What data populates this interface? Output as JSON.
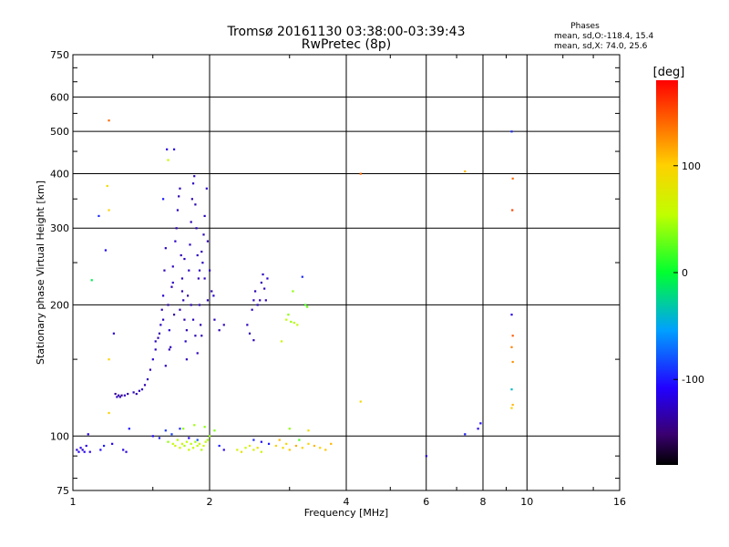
{
  "chart_data": {
    "type": "scatter",
    "title": "Tromsø 20161130 03:38:00-03:39:43",
    "subtitle": "RwPretec (8p)",
    "xlabel": "Frequency [MHz]",
    "ylabel": "Stationary phase Virtual Height [km]",
    "x_scale": "log",
    "y_scale": "log",
    "xlim": [
      1,
      16
    ],
    "ylim": [
      75,
      750
    ],
    "x_ticks": [
      "1",
      "2",
      "4",
      "6",
      "8",
      "10",
      "16"
    ],
    "y_ticks": [
      "75",
      "100",
      "200",
      "300",
      "400",
      "500",
      "600",
      "750"
    ],
    "grid": true,
    "stats": {
      "heading": "Phases",
      "line_o": "mean, sd,O:-118.4, 15.4",
      "line_x": "mean, sd,X:  74.0, 25.6"
    },
    "colorbar": {
      "label": "[deg]",
      "range": [
        -180,
        180
      ],
      "ticks": [
        "100",
        "0",
        "-100"
      ]
    },
    "series": [
      {
        "points": [
          [
            1.02,
            93,
            -120
          ],
          [
            1.03,
            92,
            -110
          ],
          [
            1.04,
            94,
            -115
          ],
          [
            1.05,
            93,
            -125
          ],
          [
            1.06,
            92,
            -108
          ],
          [
            1.07,
            95,
            -118
          ],
          [
            1.08,
            101,
            -110
          ],
          [
            1.09,
            92,
            -112
          ],
          [
            1.15,
            93,
            -105
          ],
          [
            1.17,
            95,
            -100
          ],
          [
            1.22,
            96,
            -110
          ],
          [
            1.33,
            104,
            -102
          ],
          [
            1.29,
            93,
            -115
          ],
          [
            1.31,
            92,
            -118
          ],
          [
            1.14,
            320,
            -95
          ],
          [
            1.18,
            267,
            -105
          ],
          [
            1.23,
            172,
            -120
          ],
          [
            1.1,
            228,
            -10
          ],
          [
            1.24,
            125,
            -140
          ],
          [
            1.25,
            123,
            -125
          ],
          [
            1.26,
            124,
            -135
          ],
          [
            1.27,
            123,
            -130
          ],
          [
            1.28,
            124,
            -138
          ],
          [
            1.3,
            124,
            -128
          ],
          [
            1.32,
            125,
            -135
          ],
          [
            1.36,
            126,
            -128
          ],
          [
            1.38,
            125,
            -135
          ],
          [
            1.4,
            127,
            -130
          ],
          [
            1.42,
            128,
            -125
          ],
          [
            1.44,
            131,
            -132
          ],
          [
            1.46,
            135,
            -128
          ],
          [
            1.48,
            142,
            -130
          ],
          [
            1.5,
            150,
            -120
          ],
          [
            1.52,
            158,
            -128
          ],
          [
            1.54,
            168,
            -132
          ],
          [
            1.56,
            180,
            -125
          ],
          [
            1.57,
            195,
            -130
          ],
          [
            1.58,
            210,
            -120
          ],
          [
            1.59,
            240,
            -128
          ],
          [
            1.6,
            270,
            -130
          ],
          [
            1.62,
            200,
            -132
          ],
          [
            1.63,
            175,
            -122
          ],
          [
            1.64,
            160,
            -128
          ],
          [
            1.65,
            220,
            -130
          ],
          [
            1.66,
            245,
            -126
          ],
          [
            1.67,
            190,
            -135
          ],
          [
            1.68,
            280,
            -124
          ],
          [
            1.69,
            300,
            -130
          ],
          [
            1.7,
            330,
            -125
          ],
          [
            1.71,
            355,
            -132
          ],
          [
            1.72,
            370,
            -128
          ],
          [
            1.73,
            260,
            -130
          ],
          [
            1.74,
            230,
            -124
          ],
          [
            1.75,
            205,
            -128
          ],
          [
            1.76,
            185,
            -131
          ],
          [
            1.77,
            165,
            -125
          ],
          [
            1.78,
            150,
            -130
          ],
          [
            1.79,
            210,
            -135
          ],
          [
            1.8,
            240,
            -128
          ],
          [
            1.81,
            275,
            -124
          ],
          [
            1.82,
            310,
            -130
          ],
          [
            1.83,
            350,
            -128
          ],
          [
            1.84,
            380,
            -126
          ],
          [
            1.85,
            395,
            -130
          ],
          [
            1.86,
            340,
            -132
          ],
          [
            1.87,
            300,
            -128
          ],
          [
            1.88,
            260,
            -126
          ],
          [
            1.89,
            230,
            -130
          ],
          [
            1.9,
            200,
            -128
          ],
          [
            1.91,
            180,
            -131
          ],
          [
            1.92,
            170,
            -128
          ],
          [
            1.93,
            250,
            -126
          ],
          [
            1.94,
            290,
            -130
          ],
          [
            1.95,
            320,
            -128
          ],
          [
            1.97,
            370,
            -125
          ],
          [
            1.98,
            280,
            -130
          ],
          [
            2.0,
            240,
            -128
          ],
          [
            2.02,
            215,
            -132
          ],
          [
            2.04,
            210,
            -122
          ],
          [
            1.61,
            455,
            -118
          ],
          [
            1.67,
            455,
            -112
          ],
          [
            1.62,
            430,
            60
          ],
          [
            1.58,
            350,
            -100
          ],
          [
            1.52,
            165,
            -128
          ],
          [
            1.55,
            172,
            -132
          ],
          [
            1.58,
            185,
            -126
          ],
          [
            1.6,
            145,
            -130
          ],
          [
            1.63,
            158,
            -128
          ],
          [
            1.66,
            225,
            -126
          ],
          [
            1.72,
            195,
            -130
          ],
          [
            1.74,
            215,
            -128
          ],
          [
            1.76,
            255,
            -126
          ],
          [
            1.78,
            175,
            -132
          ],
          [
            1.82,
            200,
            -129
          ],
          [
            1.84,
            185,
            -127
          ],
          [
            1.86,
            170,
            -130
          ],
          [
            1.88,
            155,
            -128
          ],
          [
            1.9,
            240,
            -126
          ],
          [
            1.92,
            265,
            -130
          ],
          [
            1.95,
            230,
            -128
          ],
          [
            1.98,
            205,
            -126
          ],
          [
            2.05,
            185,
            -128
          ],
          [
            2.1,
            175,
            -132
          ],
          [
            2.15,
            180,
            -126
          ],
          [
            2.42,
            180,
            -128
          ],
          [
            2.45,
            172,
            -130
          ],
          [
            2.48,
            195,
            -126
          ],
          [
            2.5,
            205,
            -128
          ],
          [
            2.52,
            215,
            -130
          ],
          [
            2.55,
            200,
            -124
          ],
          [
            2.58,
            205,
            -128
          ],
          [
            2.6,
            225,
            -130
          ],
          [
            2.62,
            235,
            -126
          ],
          [
            2.64,
            218,
            -128
          ],
          [
            2.66,
            205,
            -130
          ],
          [
            2.68,
            230,
            -124
          ],
          [
            2.5,
            166,
            -130
          ],
          [
            3.2,
            232,
            -95
          ],
          [
            3.25,
            200,
            20
          ],
          [
            3.28,
            198,
            30
          ],
          [
            3.12,
            180,
            55
          ],
          [
            3.07,
            182,
            50
          ],
          [
            3.02,
            183,
            45
          ],
          [
            2.98,
            190,
            40
          ],
          [
            3.05,
            215,
            40
          ],
          [
            2.88,
            165,
            60
          ],
          [
            2.95,
            185,
            55
          ],
          [
            1.5,
            100,
            -110
          ],
          [
            1.55,
            99,
            -100
          ],
          [
            1.6,
            103,
            -90
          ],
          [
            1.65,
            101,
            -85
          ],
          [
            1.72,
            104,
            -95
          ],
          [
            1.8,
            99,
            -110
          ],
          [
            1.88,
            98,
            -80
          ],
          [
            1.62,
            97,
            40
          ],
          [
            1.66,
            96,
            55
          ],
          [
            1.68,
            95,
            60
          ],
          [
            1.7,
            98,
            50
          ],
          [
            1.72,
            94,
            62
          ],
          [
            1.74,
            96,
            58
          ],
          [
            1.76,
            95,
            48
          ],
          [
            1.78,
            97,
            55
          ],
          [
            1.8,
            93,
            60
          ],
          [
            1.82,
            96,
            52
          ],
          [
            1.84,
            94,
            58
          ],
          [
            1.86,
            97,
            45
          ],
          [
            1.88,
            95,
            55
          ],
          [
            1.9,
            96,
            60
          ],
          [
            1.92,
            93,
            50
          ],
          [
            1.94,
            95,
            62
          ],
          [
            1.96,
            97,
            55
          ],
          [
            1.98,
            98,
            48
          ],
          [
            2.0,
            100,
            40
          ],
          [
            1.75,
            104,
            40
          ],
          [
            1.85,
            106,
            45
          ],
          [
            1.95,
            105,
            38
          ],
          [
            2.05,
            103,
            35
          ],
          [
            2.1,
            95,
            -100
          ],
          [
            2.15,
            93,
            -110
          ],
          [
            2.3,
            93,
            70
          ],
          [
            2.35,
            92,
            80
          ],
          [
            2.4,
            94,
            60
          ],
          [
            2.45,
            95,
            75
          ],
          [
            2.5,
            93,
            70
          ],
          [
            2.55,
            94,
            85
          ],
          [
            2.6,
            92,
            65
          ],
          [
            2.8,
            95,
            100
          ],
          [
            2.85,
            98,
            110
          ],
          [
            2.9,
            94,
            90
          ],
          [
            2.95,
            96,
            95
          ],
          [
            3.0,
            93,
            105
          ],
          [
            3.1,
            95,
            115
          ],
          [
            3.2,
            94,
            100
          ],
          [
            3.3,
            96,
            95
          ],
          [
            3.4,
            95,
            110
          ],
          [
            3.5,
            94,
            100
          ],
          [
            3.6,
            93,
            105
          ],
          [
            3.7,
            96,
            110
          ],
          [
            2.5,
            98,
            -95
          ],
          [
            2.6,
            97,
            -105
          ],
          [
            2.7,
            96,
            -100
          ],
          [
            3.0,
            104,
            40
          ],
          [
            3.15,
            98,
            20
          ],
          [
            3.3,
            103,
            90
          ],
          [
            1.2,
            530,
            140
          ],
          [
            1.19,
            375,
            90
          ],
          [
            1.2,
            330,
            100
          ],
          [
            1.2,
            150,
            100
          ],
          [
            1.2,
            113,
            100
          ],
          [
            4.3,
            400,
            140
          ],
          [
            4.3,
            120,
            95
          ],
          [
            6.0,
            90,
            -120
          ],
          [
            7.3,
            101,
            -100
          ],
          [
            7.8,
            104,
            -110
          ],
          [
            7.9,
            107,
            -105
          ],
          [
            7.3,
            405,
            110
          ],
          [
            9.25,
            500,
            -95
          ],
          [
            9.3,
            390,
            140
          ],
          [
            9.28,
            330,
            155
          ],
          [
            9.25,
            190,
            -115
          ],
          [
            9.3,
            170,
            145
          ],
          [
            9.25,
            160,
            130
          ],
          [
            9.3,
            148,
            125
          ],
          [
            9.25,
            128,
            -40
          ],
          [
            9.3,
            118,
            110
          ],
          [
            9.25,
            116,
            100
          ]
        ]
      }
    ]
  }
}
